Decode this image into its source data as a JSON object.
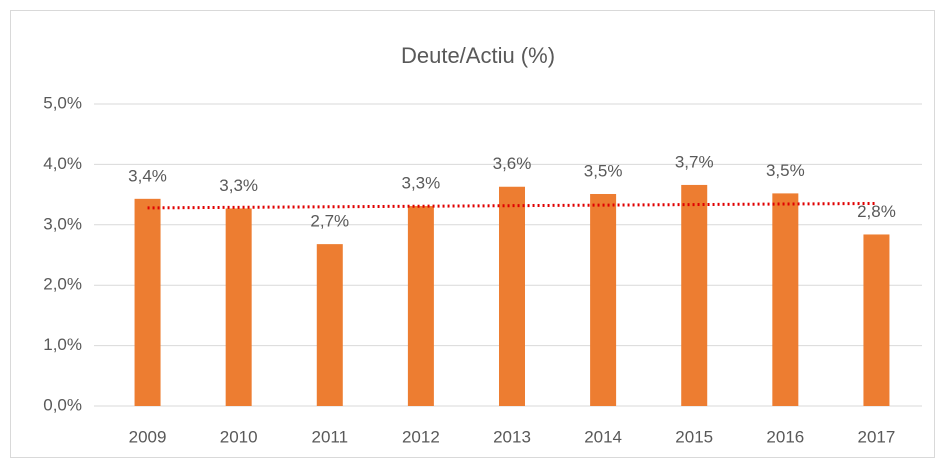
{
  "chart_data": {
    "type": "bar",
    "title": "Deute/Actiu (%)",
    "categories": [
      "2009",
      "2010",
      "2011",
      "2012",
      "2013",
      "2014",
      "2015",
      "2016",
      "2017"
    ],
    "values": [
      3.43,
      3.27,
      2.68,
      3.31,
      3.63,
      3.51,
      3.66,
      3.52,
      2.84
    ],
    "value_labels": [
      "3,4%",
      "3,3%",
      "2,7%",
      "3,3%",
      "3,6%",
      "3,5%",
      "3,7%",
      "3,5%",
      "2,8%"
    ],
    "color": "#ed7d31",
    "ylim": [
      0,
      5
    ],
    "yticks": [
      {
        "value": 0,
        "label": "0,0%"
      },
      {
        "value": 1,
        "label": "1,0%"
      },
      {
        "value": 2,
        "label": "2,0%"
      },
      {
        "value": 3,
        "label": "3,0%"
      },
      {
        "value": 4,
        "label": "4,0%"
      },
      {
        "value": 5,
        "label": "5,0%"
      }
    ],
    "grid": true,
    "trendline": {
      "type": "linear",
      "color": "#e00000",
      "style": "dotted"
    }
  }
}
